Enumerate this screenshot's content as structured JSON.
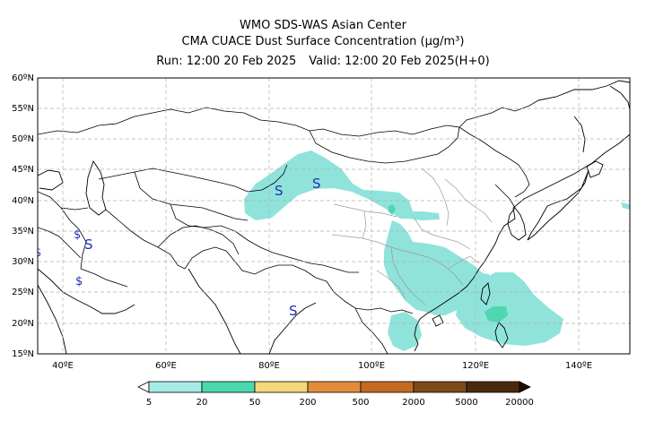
{
  "header": {
    "line1": "WMO SDS-WAS Asian Center",
    "line2_prefix": "CMA CUACE Dust Surface Concentration ",
    "line2_unit": "(μg/m³)",
    "run": "Run: 12:00 20 Feb 2025",
    "valid": "Valid: 12:00 20 Feb 2025(H+0)"
  },
  "map": {
    "lat_labels": [
      "60ºN",
      "55ºN",
      "50ºN",
      "45ºN",
      "40ºN",
      "35ºN",
      "30ºN",
      "25ºN",
      "20ºN",
      "15ºN"
    ],
    "lon_labels": [
      "40ºE",
      "60ºE",
      "80ºE",
      "100ºE",
      "120ºE",
      "140ºE"
    ],
    "lon_range": [
      35,
      150
    ],
    "lat_range": [
      15,
      60
    ],
    "dust_color_light": "#8fe3da",
    "dust_color_mid": "#4fd7b0",
    "station_symbols": [
      "S",
      "S",
      "S",
      "S",
      "$",
      "$",
      "$"
    ]
  },
  "colorbar": {
    "levels": [
      "5",
      "20",
      "50",
      "200",
      "500",
      "2000",
      "5000",
      "20000"
    ],
    "colors": [
      "#a6ece6",
      "#4ad9ad",
      "#f4d879",
      "#ecb04e",
      "#d4712b",
      "#a35a16",
      "#6a3c12",
      "#3a2008",
      "#1c0f04"
    ]
  }
}
